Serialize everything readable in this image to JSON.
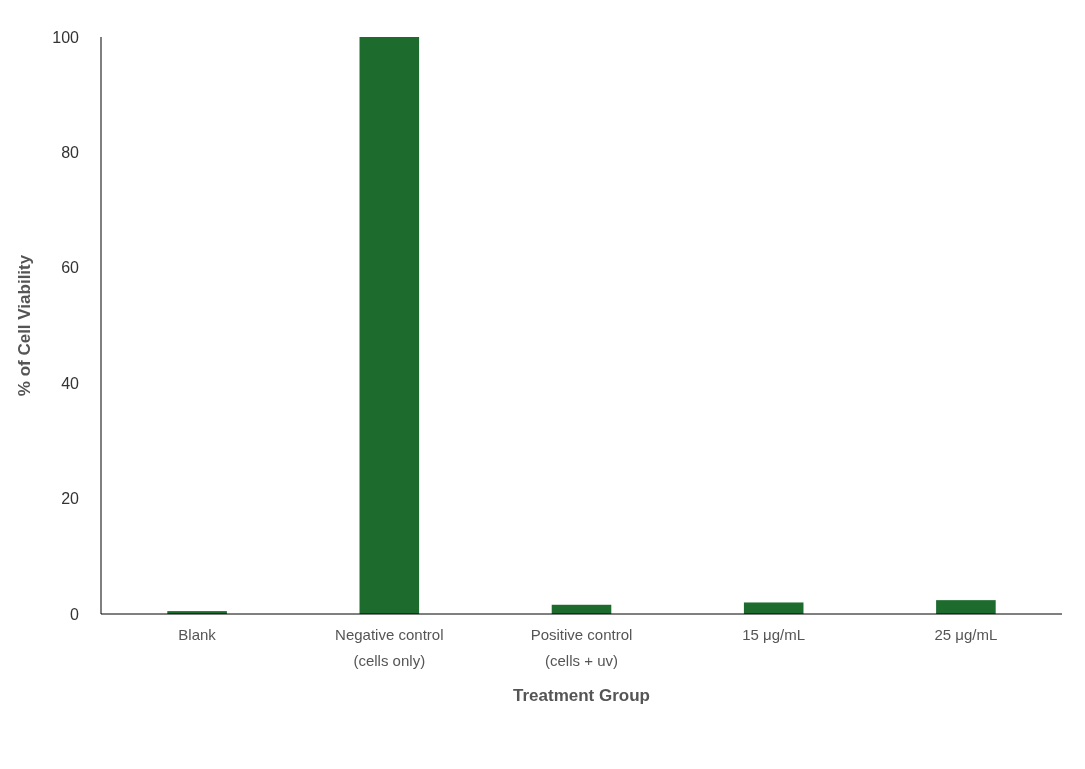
{
  "chart_data": {
    "type": "bar",
    "xlabel": "Treatment Group",
    "ylabel": "% of Cell Viability",
    "categories": [
      "Blank",
      "Negative control (cells only)",
      "Positive control (cells + uv)",
      "15 μg/mL",
      "25 μg/mL"
    ],
    "values": [
      0.5,
      100,
      1.6,
      2.0,
      2.4
    ],
    "color": "#1e6b2e",
    "ylim": [
      0,
      100
    ],
    "yticks": [
      0,
      20,
      40,
      60,
      80,
      100
    ],
    "grid": false
  }
}
